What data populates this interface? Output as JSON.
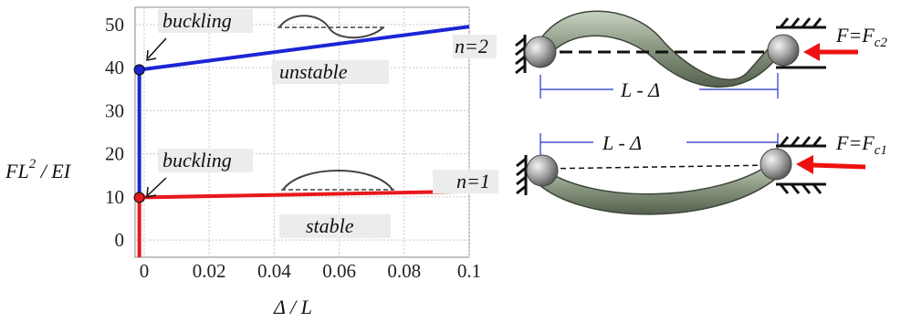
{
  "chart_data": {
    "type": "line",
    "xlabel": "Δ / L",
    "ylabel_main": "FL",
    "ylabel_exp": "2",
    "ylabel_tail": " / EI",
    "xlim": [
      -0.0028,
      0.1
    ],
    "ylim": [
      -4,
      54
    ],
    "x_ticks": [
      0,
      0.02,
      0.04,
      0.06,
      0.08,
      0.1
    ],
    "x_tick_labels": [
      "0",
      "0.02",
      "0.04",
      "0.06",
      "0.08",
      "0.1"
    ],
    "y_ticks": [
      0,
      10,
      20,
      30,
      40,
      50
    ],
    "y_tick_labels": [
      "0",
      "10",
      "20",
      "30",
      "40",
      "50"
    ],
    "grid": true,
    "series": [
      {
        "name": "stable",
        "color": "#e8181c",
        "x": [
          -0.0015,
          -0.0015,
          0.1
        ],
        "y": [
          -4,
          9.87,
          11.3
        ],
        "buckling_point": [
          -0.0015,
          9.87
        ]
      },
      {
        "name": "unstable",
        "color": "#1c24d6",
        "x": [
          -0.0015,
          -0.0015,
          0.1
        ],
        "y": [
          9.87,
          39.5,
          49.5
        ],
        "buckling_point": [
          -0.0015,
          39.5
        ]
      }
    ],
    "annotations": [
      {
        "text": "buckling",
        "target": "unstable"
      },
      {
        "text": "buckling",
        "target": "stable"
      },
      {
        "text": "unstable",
        "label_for": "unstable"
      },
      {
        "text": "stable",
        "label_for": "stable"
      }
    ]
  },
  "diagram": {
    "mode2": {
      "n_label": "n=2",
      "force_label": "F=F",
      "force_sub": "c2",
      "length_label": "L - Δ"
    },
    "mode1": {
      "n_label": "n=1",
      "force_label": "F=F",
      "force_sub": "c1",
      "length_label": "L - Δ"
    }
  },
  "colors": {
    "beam": "#8c9a84",
    "beam_dark": "#55614e",
    "arrow": "#ee1111",
    "dimension": "#2233cc"
  }
}
